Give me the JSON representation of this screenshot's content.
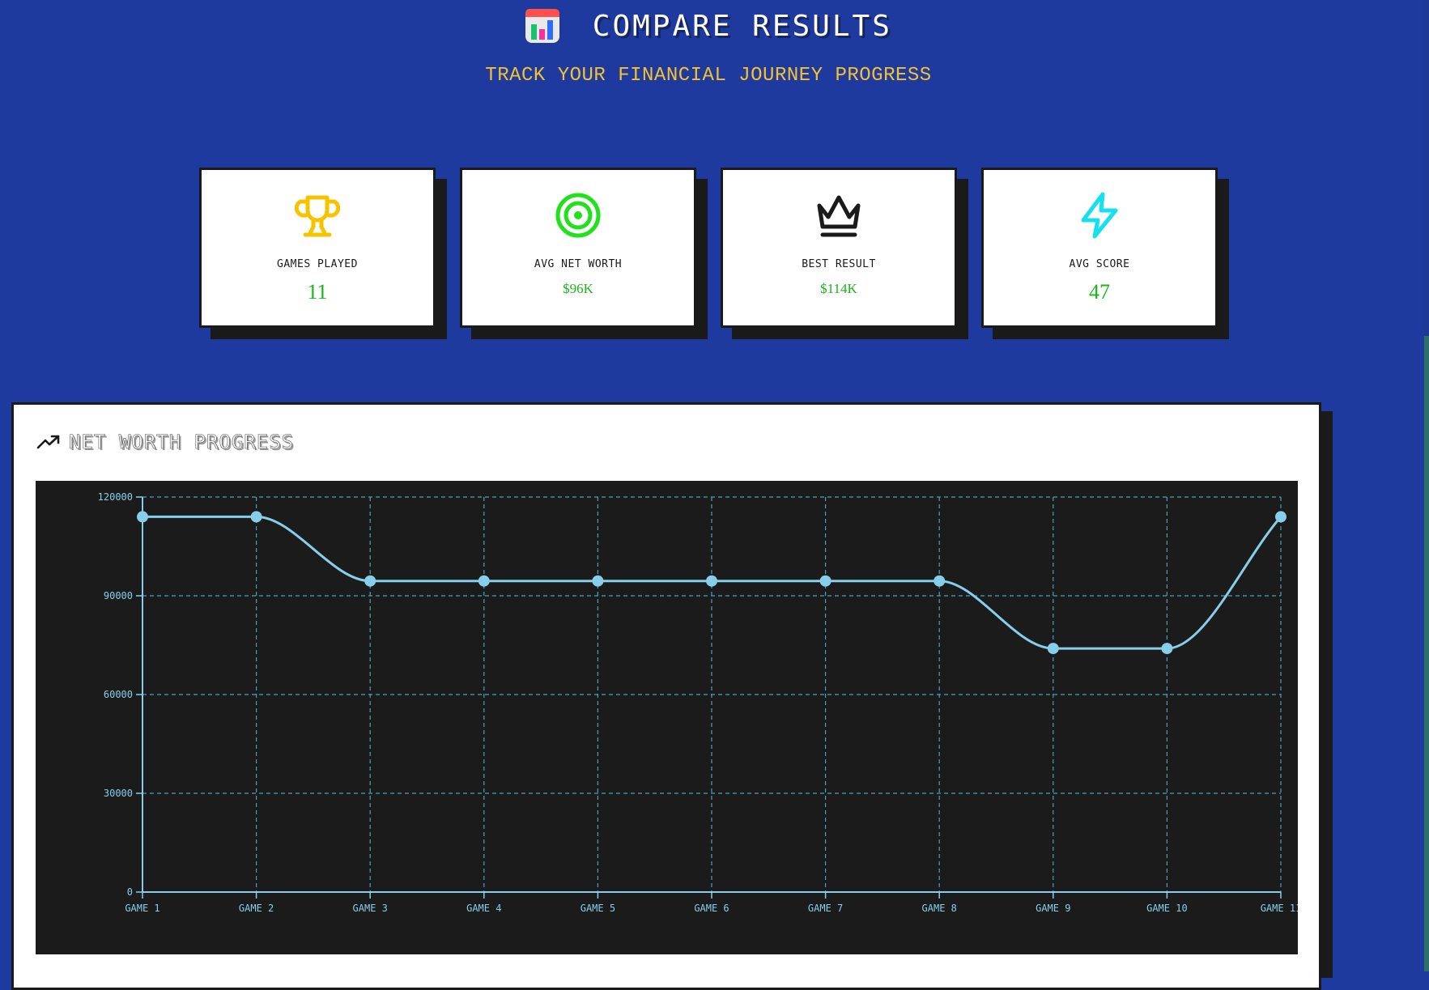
{
  "header": {
    "title": "COMPARE RESULTS",
    "subtitle": "TRACK YOUR FINANCIAL JOURNEY PROGRESS",
    "icon": "bar-chart-icon"
  },
  "stats": [
    {
      "label": "GAMES PLAYED",
      "value": "11",
      "icon": "trophy-icon",
      "color": "#f5c400"
    },
    {
      "label": "AVG NET WORTH",
      "value": "$96K",
      "icon": "target-icon",
      "color": "#22e01a"
    },
    {
      "label": "BEST RESULT",
      "value": "$114K",
      "icon": "crown-icon",
      "color": "#1a1a1a"
    },
    {
      "label": "AVG SCORE",
      "value": "47",
      "icon": "lightning-icon",
      "color": "#14e0f0"
    }
  ],
  "panel": {
    "title": "NET WORTH PROGRESS",
    "icon": "trending-up-icon"
  },
  "colors": {
    "background": "#1f3a9f",
    "accent_yellow": "#f2c230",
    "value_green": "#1ab51a",
    "chart_bg": "#1b1b1b",
    "chart_line": "#87ceeb",
    "grid": "#4aa0b8"
  },
  "chart_data": {
    "type": "line",
    "title": "NET WORTH PROGRESS",
    "xlabel": "",
    "ylabel": "",
    "categories": [
      "GAME 1",
      "GAME 2",
      "GAME 3",
      "GAME 4",
      "GAME 5",
      "GAME 6",
      "GAME 7",
      "GAME 8",
      "GAME 9",
      "GAME 10",
      "GAME 11"
    ],
    "series": [
      {
        "values": [
          114000,
          114000,
          94500,
          94500,
          94500,
          94500,
          94500,
          94500,
          74000,
          74000,
          114000
        ]
      }
    ],
    "ylim": [
      0,
      120000
    ],
    "yticks": [
      0,
      30000,
      60000,
      90000,
      120000
    ],
    "grid": true,
    "curve": "smooth"
  }
}
